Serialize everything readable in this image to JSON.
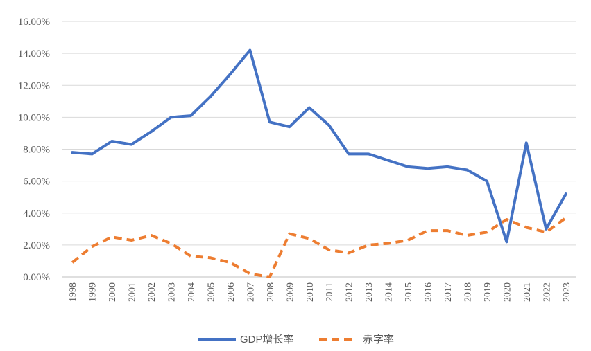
{
  "chart_data": {
    "type": "line",
    "title": "",
    "xlabel": "",
    "ylabel": "",
    "ylim": [
      0,
      16
    ],
    "y_ticks": [
      0,
      2,
      4,
      6,
      8,
      10,
      12,
      14,
      16
    ],
    "y_tick_labels": [
      "0.00%",
      "2.00%",
      "4.00%",
      "6.00%",
      "8.00%",
      "10.00%",
      "12.00%",
      "14.00%",
      "16.00%"
    ],
    "grid": "horizontal",
    "legend_position": "bottom",
    "categories": [
      "1998",
      "1999",
      "2000",
      "2001",
      "2002",
      "2003",
      "2004",
      "2005",
      "2006",
      "2007",
      "2008",
      "2009",
      "2010",
      "2011",
      "2012",
      "2013",
      "2014",
      "2015",
      "2016",
      "2017",
      "2018",
      "2019",
      "2020",
      "2021",
      "2022",
      "2023"
    ],
    "series": [
      {
        "name": "GDP增长率",
        "style": "solid",
        "color": "#4472C4",
        "values": [
          7.8,
          7.7,
          8.5,
          8.3,
          9.1,
          10.0,
          10.1,
          11.3,
          12.7,
          14.2,
          9.7,
          9.4,
          10.6,
          9.5,
          7.7,
          7.7,
          7.3,
          6.9,
          6.8,
          6.9,
          6.7,
          6.0,
          2.2,
          8.4,
          3.0,
          5.2
        ]
      },
      {
        "name": "赤字率",
        "style": "dashed",
        "color": "#ED7D31",
        "values": [
          0.9,
          1.9,
          2.5,
          2.3,
          2.6,
          2.1,
          1.3,
          1.2,
          0.9,
          0.2,
          0.0,
          2.7,
          2.4,
          1.7,
          1.5,
          2.0,
          2.1,
          2.3,
          2.9,
          2.9,
          2.6,
          2.8,
          3.6,
          3.1,
          2.8,
          3.7
        ]
      }
    ]
  }
}
